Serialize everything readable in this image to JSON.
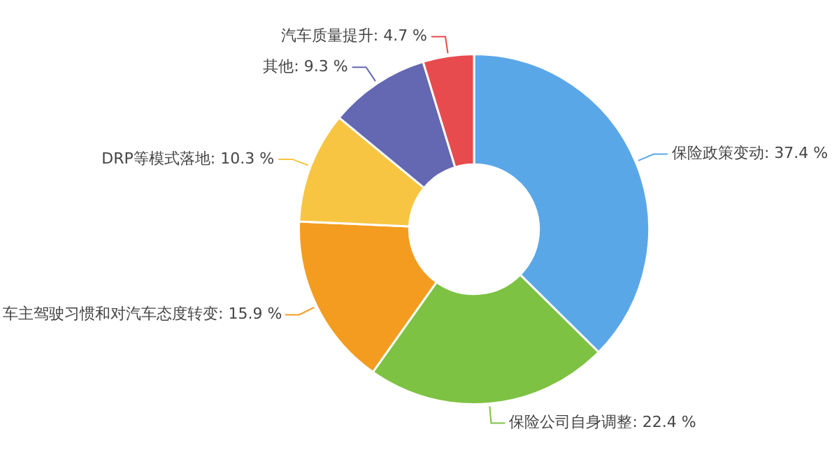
{
  "chart_data": {
    "type": "donut",
    "categories": [
      "保险政策变动",
      "保险公司自身调整",
      "车主驾驶习惯和对汽车态度转变",
      "DRP等模式落地",
      "其他",
      "汽车质量提升"
    ],
    "values": [
      37.4,
      22.4,
      15.9,
      10.3,
      9.3,
      4.7
    ],
    "value_labels": [
      "37.4 %",
      "22.4 %",
      "15.9 %",
      "10.3 %",
      "9.3 %",
      "4.7 %"
    ],
    "colors": [
      "#5aa7e8",
      "#7dc242",
      "#f39c1f",
      "#f8c542",
      "#6468b2",
      "#e84b4e"
    ],
    "legend": false
  }
}
